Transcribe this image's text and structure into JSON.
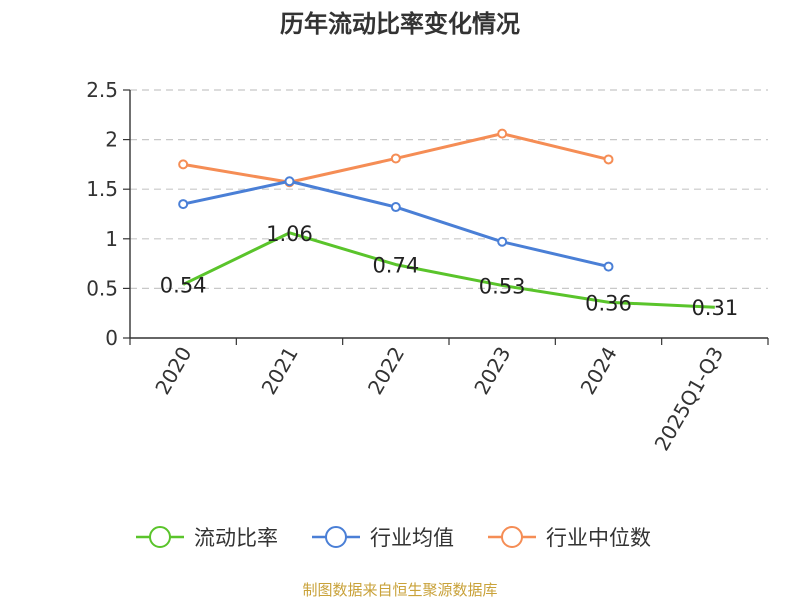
{
  "chart_data": {
    "type": "line",
    "title": "历年流动比率变化情况",
    "categories": [
      "2020",
      "2021",
      "2022",
      "2023",
      "2024",
      "2025Q1-Q3"
    ],
    "ylim": [
      0,
      2.5
    ],
    "yticks": [
      "0",
      "0.5",
      "1",
      "1.5",
      "2",
      "2.5"
    ],
    "grid": true,
    "legend_position": "bottom",
    "series": [
      {
        "name": "流动比率",
        "color": "#5ac42b",
        "values": [
          0.54,
          1.06,
          0.74,
          0.53,
          0.36,
          0.31
        ],
        "labels": [
          "0.54",
          "1.06",
          "0.74",
          "0.53",
          "0.36",
          "0.31"
        ]
      },
      {
        "name": "行业均值",
        "color": "#4a7fd6",
        "values": [
          1.35,
          1.58,
          1.32,
          0.97,
          0.72,
          null
        ]
      },
      {
        "name": "行业中位数",
        "color": "#f58d55",
        "values": [
          1.75,
          1.57,
          1.81,
          2.06,
          1.8,
          null
        ]
      }
    ],
    "source": "制图数据来自恒生聚源数据库"
  }
}
